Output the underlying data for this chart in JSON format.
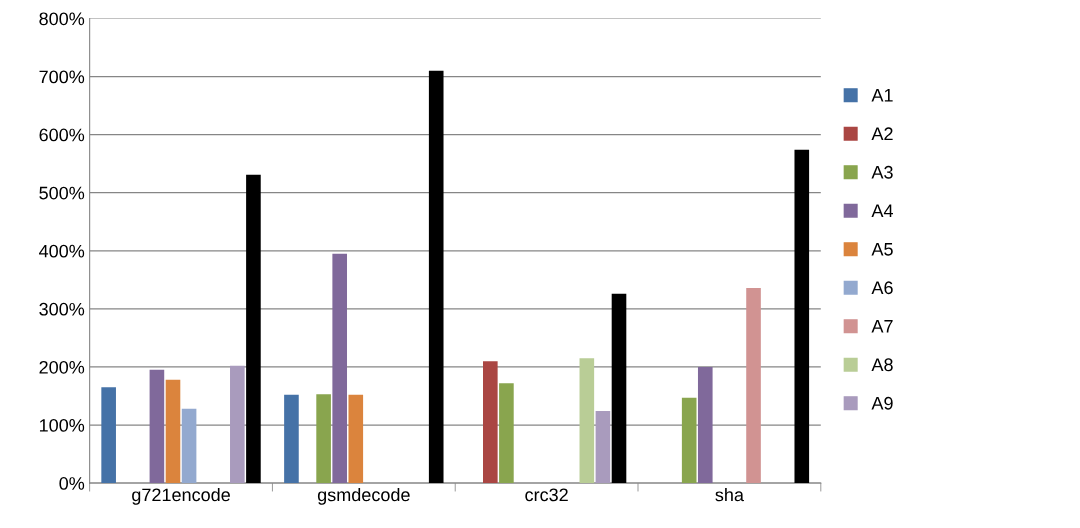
{
  "chart_data": {
    "type": "bar",
    "categories": [
      "g721encode",
      "gsmdecode",
      "crc32",
      "sha"
    ],
    "series": [
      {
        "name": "A1",
        "color": "#4572a7",
        "values": [
          165,
          152,
          null,
          null
        ]
      },
      {
        "name": "A2",
        "color": "#aa4643",
        "values": [
          null,
          null,
          210,
          null
        ]
      },
      {
        "name": "A3",
        "color": "#89a54e",
        "values": [
          null,
          153,
          172,
          147
        ]
      },
      {
        "name": "A4",
        "color": "#80699b",
        "values": [
          195,
          395,
          null,
          200
        ]
      },
      {
        "name": "A5",
        "color": "#db843d",
        "values": [
          178,
          152,
          null,
          null
        ]
      },
      {
        "name": "A6",
        "color": "#93a9cf",
        "values": [
          128,
          null,
          null,
          null
        ]
      },
      {
        "name": "A7",
        "color": "#d19392",
        "values": [
          null,
          null,
          null,
          336
        ]
      },
      {
        "name": "A8",
        "color": "#b9cd96",
        "values": [
          null,
          null,
          215,
          null
        ]
      },
      {
        "name": "A9",
        "color": "#a99bbd",
        "values": [
          202,
          null,
          124,
          null
        ]
      },
      {
        "color": "#000000",
        "values": [
          531,
          710,
          326,
          574
        ]
      }
    ],
    "ylim": [
      0,
      800
    ],
    "yticks": [
      {
        "value": 0,
        "label": "0%"
      },
      {
        "value": 100,
        "label": "100%"
      },
      {
        "value": 200,
        "label": "200%"
      },
      {
        "value": 300,
        "label": "300%"
      },
      {
        "value": 400,
        "label": "400%"
      },
      {
        "value": 500,
        "label": "500%"
      },
      {
        "value": 600,
        "label": "600%"
      },
      {
        "value": 700,
        "label": "700%"
      },
      {
        "value": 800,
        "label": "800%"
      }
    ],
    "grid": "y",
    "legend": "right"
  }
}
